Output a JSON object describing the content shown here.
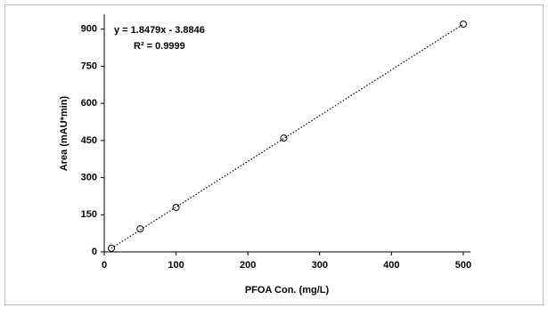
{
  "chart_data": {
    "type": "scatter",
    "x_label": "PFOA Con. (mg/L)",
    "y_label": "Area (mAU*min)",
    "annotations": [
      "y = 1.8479x - 3.8846",
      "R² = 0.9999"
    ],
    "x": [
      10,
      50,
      100,
      250,
      500
    ],
    "values": [
      15,
      93,
      180,
      460,
      920
    ],
    "trendline": {
      "slope": 1.8479,
      "intercept": -3.8846
    },
    "xlim": [
      0,
      510
    ],
    "xticks": [
      0,
      100,
      200,
      300,
      400,
      500
    ],
    "ylim": [
      0,
      960
    ],
    "yticks": [
      0,
      150,
      300,
      450,
      600,
      750,
      900
    ],
    "color": "#000000"
  }
}
